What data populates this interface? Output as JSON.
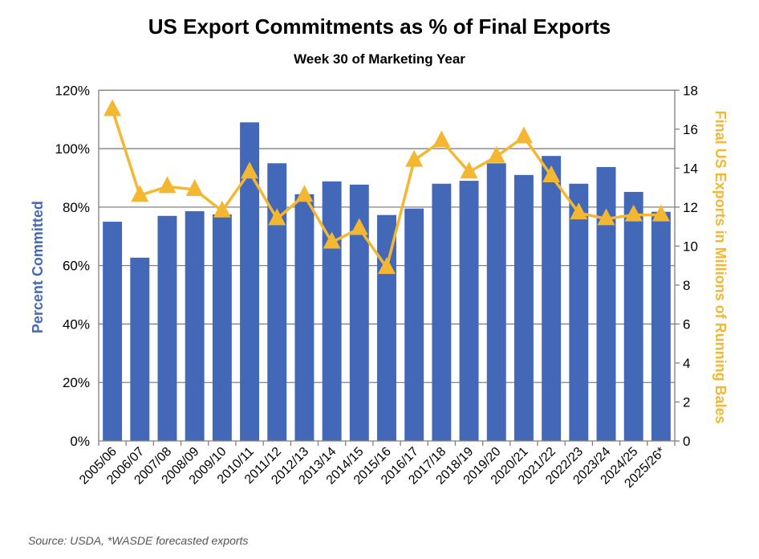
{
  "chart_data": {
    "type": "bar+line",
    "title": "US Export Commitments as % of Final Exports",
    "subtitle": "Week 30 of Marketing Year",
    "source": "Source: USDA, *WASDE forecasted exports",
    "categories": [
      "2005/06",
      "2006/07",
      "2007/08",
      "2008/09",
      "2009/10",
      "2010/11",
      "2011/12",
      "2012/13",
      "2013/14",
      "2014/15",
      "2015/16",
      "2016/17",
      "2017/18",
      "2018/19",
      "2019/20",
      "2020/21",
      "2021/22",
      "2022/23",
      "2023/24",
      "2024/25",
      "2025/26*"
    ],
    "ylabel_left": "Percent Committed",
    "ylabel_right": "Final US Exports in Millions of Running Bales",
    "ylim_left": [
      0,
      120
    ],
    "yticks_left": [
      "0%",
      "20%",
      "40%",
      "60%",
      "80%",
      "100%",
      "120%"
    ],
    "ylim_right": [
      0,
      18
    ],
    "yticks_right": [
      "0",
      "2",
      "4",
      "6",
      "8",
      "10",
      "12",
      "14",
      "16",
      "18"
    ],
    "grid": true,
    "series": [
      {
        "type": "bar",
        "axis": "left",
        "color": "#4468B8",
        "values": [
          75,
          62.7,
          77,
          78.6,
          77.5,
          109,
          95,
          84.4,
          88.8,
          87.7,
          77.3,
          79.5,
          88,
          89,
          95,
          91,
          97.5,
          88,
          93.7,
          85.2,
          78.4
        ]
      },
      {
        "type": "line",
        "axis": "right",
        "marker": "triangle",
        "color": "#F4B731",
        "values": [
          17.0,
          12.6,
          13.05,
          12.9,
          11.8,
          13.8,
          11.4,
          12.6,
          10.2,
          10.9,
          8.9,
          14.4,
          15.4,
          13.8,
          14.6,
          15.6,
          13.6,
          11.7,
          11.4,
          11.6,
          11.6
        ]
      }
    ]
  }
}
